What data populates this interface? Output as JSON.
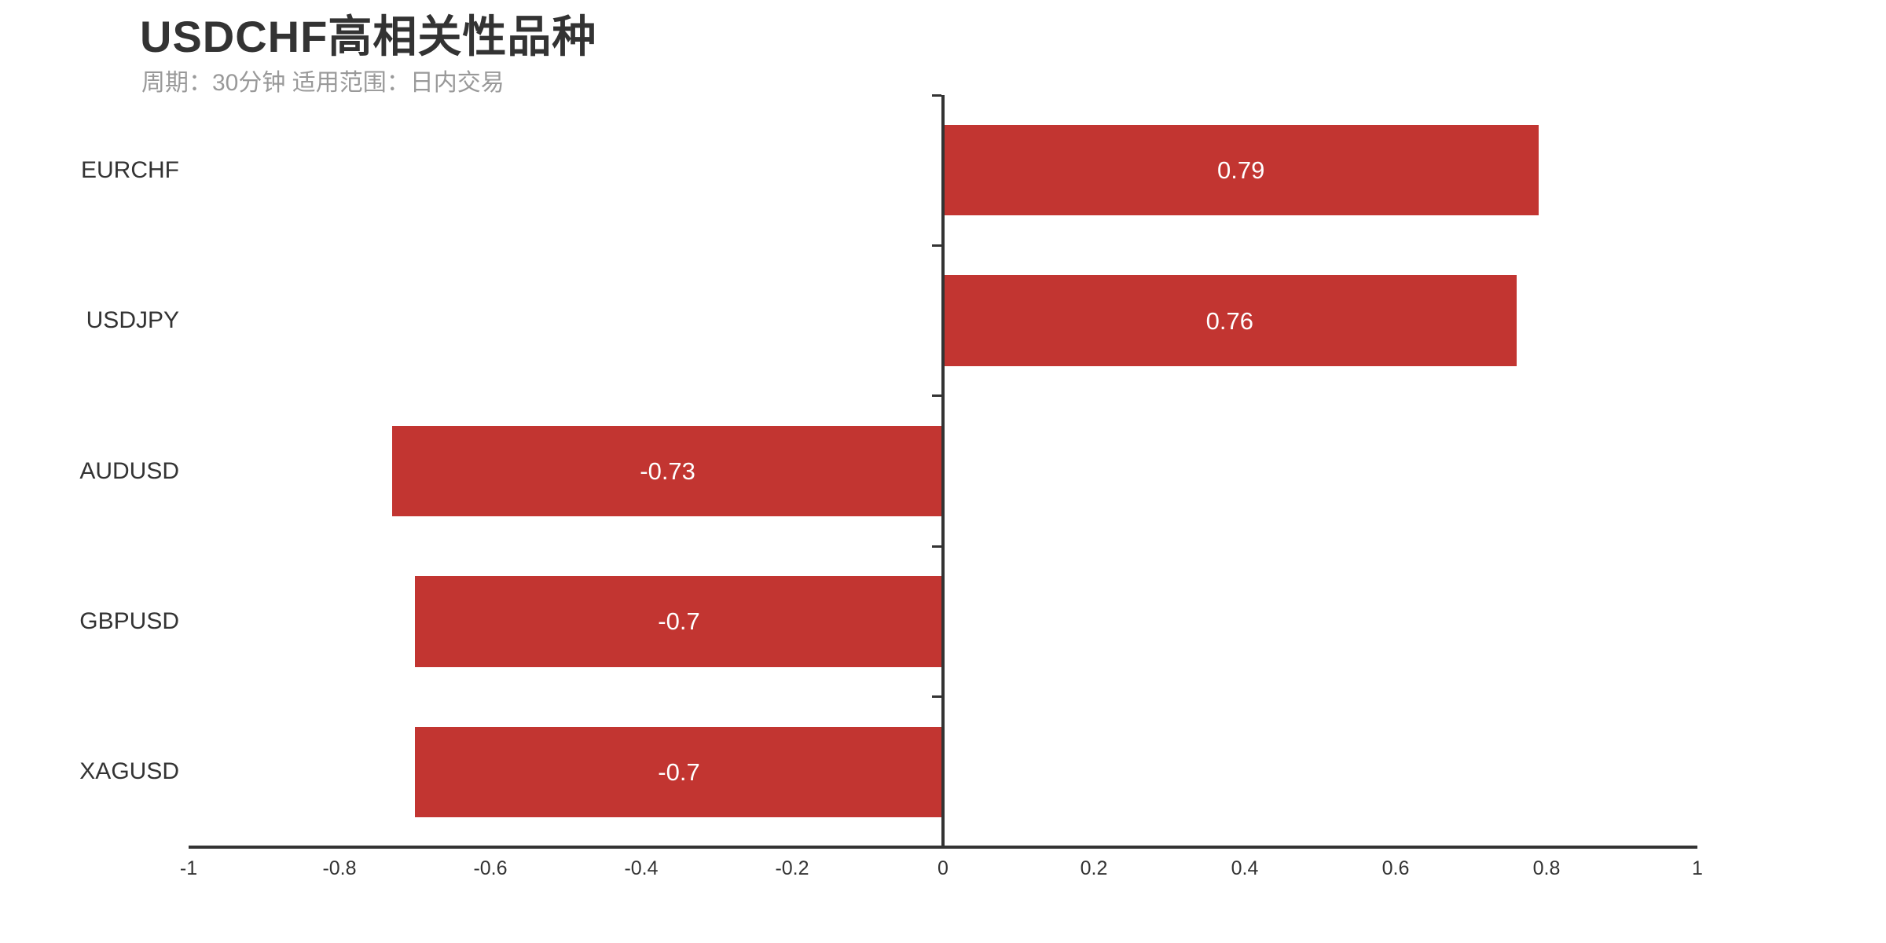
{
  "chart_data": {
    "type": "bar",
    "orientation": "horizontal",
    "title": "USDCHF高相关性品种",
    "subtitle": "周期：30分钟 适用范围：日内交易",
    "categories": [
      "EURCHF",
      "USDJPY",
      "AUDUSD",
      "GBPUSD",
      "XAGUSD"
    ],
    "values": [
      0.79,
      0.76,
      -0.73,
      -0.7,
      -0.7
    ],
    "value_labels": [
      "0.79",
      "0.76",
      "-0.73",
      "-0.7",
      "-0.7"
    ],
    "xlabel": "",
    "ylabel": "",
    "xlim": [
      -1,
      1
    ],
    "x_tick_values": [
      -1,
      -0.8,
      -0.6,
      -0.4,
      -0.2,
      0,
      0.2,
      0.4,
      0.6,
      0.8,
      1
    ],
    "x_tick_labels": [
      "-1",
      "-0.8",
      "-0.6",
      "-0.4",
      "-0.2",
      "0",
      "0.2",
      "0.4",
      "0.6",
      "0.8",
      "1"
    ],
    "grid": false,
    "legend": false,
    "value_label_position": "inside-center"
  },
  "style": {
    "bar_color": "#c23531",
    "axis_color": "#333333",
    "title_color": "#333333",
    "subtitle_color": "#999999",
    "category_label_color": "#333333",
    "x_tick_label_color": "#333333",
    "value_label_color": "#ffffff",
    "background_color": "#ffffff"
  }
}
